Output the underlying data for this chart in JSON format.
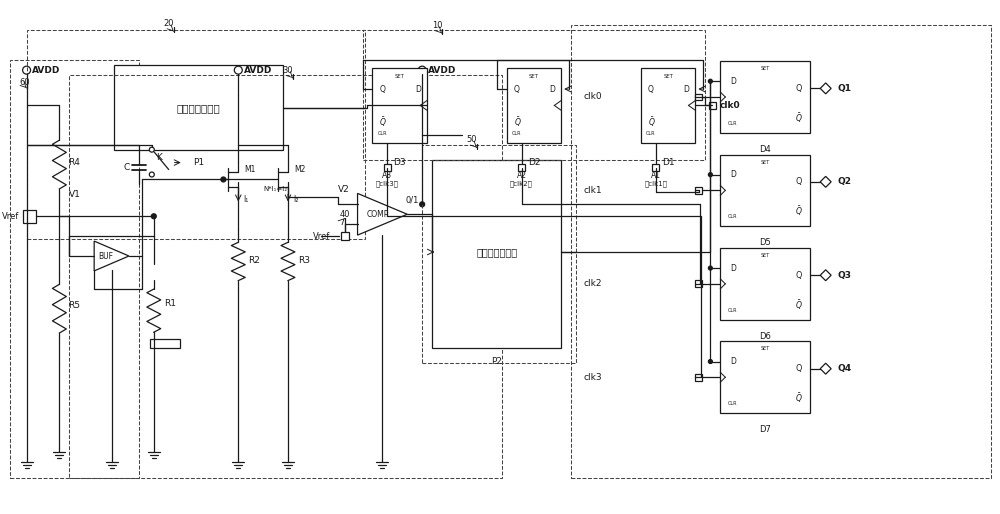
{
  "bg_color": "#ffffff",
  "line_color": "#1a1a1a",
  "fig_width": 10.0,
  "fig_height": 5.14,
  "dpi": 100,
  "labels": {
    "avdd_left": "AVDD",
    "avdd_mid": "AVDD",
    "avdd_right": "AVDD",
    "r4": "R4",
    "r5": "R5",
    "r1": "R1",
    "r2": "R2",
    "r3": "R3",
    "vref": "Vref",
    "v1": "V1",
    "v2": "V2",
    "c": "C",
    "k": "K",
    "buf": "BUF",
    "m1": "M1",
    "m2": "M2",
    "i1": "I₁",
    "i2": "I₂",
    "ni1i2": "N*I₁=I₂",
    "comp": "COMP",
    "p1_label": "P1",
    "p1_text": "第一脉冲发生器",
    "p2_text": "第二脉冲发生器",
    "p2_label": "P2",
    "num10": "10",
    "num20": "20",
    "num30": "30",
    "num40": "40",
    "num50": "50",
    "num60": "60",
    "clk0": "clk0",
    "clk1": "clk1",
    "clk2": "clk2",
    "clk3": "clk3",
    "d1": "D1",
    "d2": "D2",
    "d3": "D3",
    "d4": "D4",
    "d5": "D5",
    "d6": "D6",
    "d7": "D7",
    "a1": "A1\n（clk1）",
    "a2": "A2\n（clk2）",
    "a3": "A3\n（clk3）",
    "q1": "Q1",
    "q2": "Q2",
    "q3": "Q3",
    "q4": "Q4",
    "zero_one": "0/1"
  }
}
